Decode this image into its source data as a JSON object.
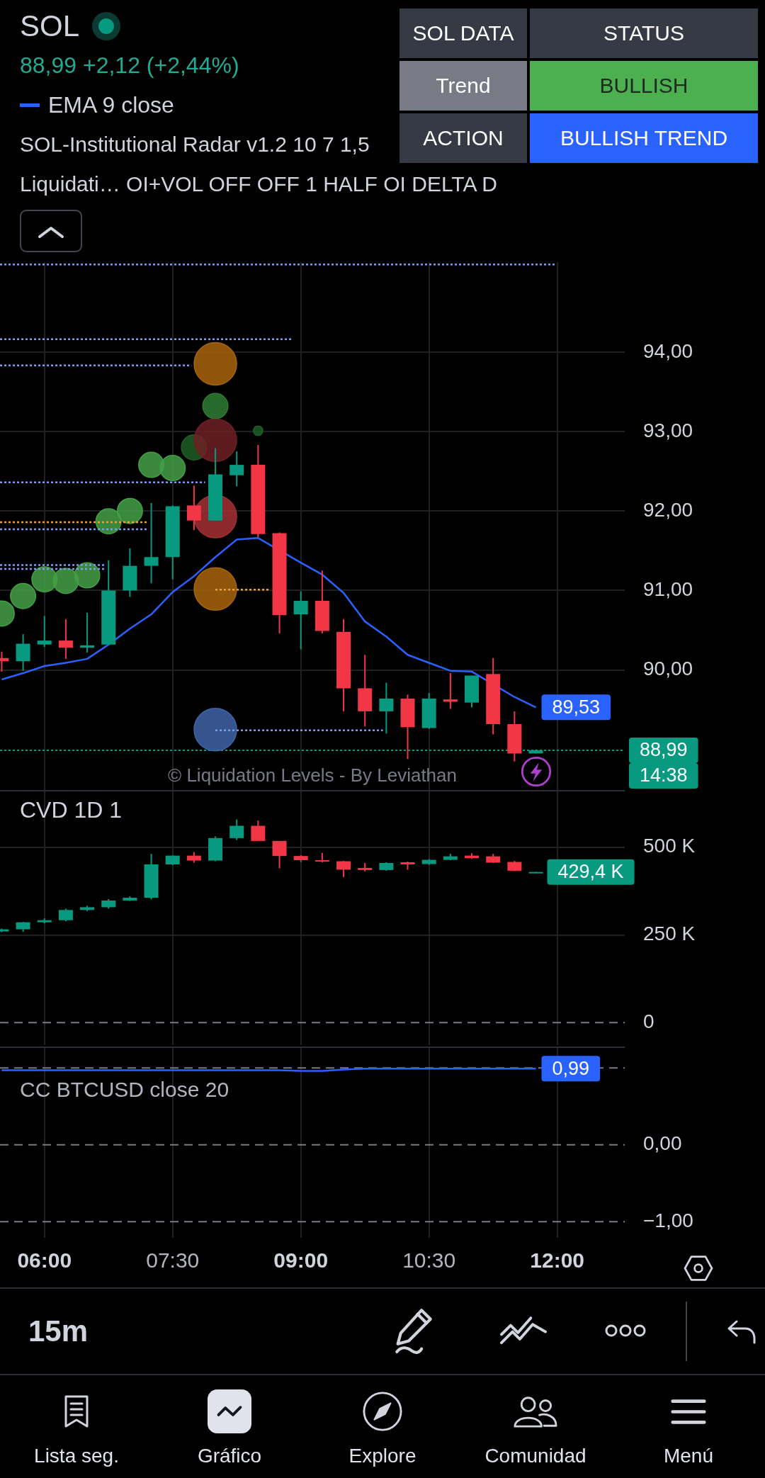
{
  "chart_data": [
    {
      "type": "candlestick",
      "title": "SOL",
      "subtitle": "88,99 +2,12 (+2,44%)",
      "x": [
        5.5,
        5.75,
        6,
        6.25,
        6.5,
        6.75,
        7,
        7.25,
        7.5,
        7.75,
        8,
        8.25,
        8.5,
        8.75,
        9,
        9.25,
        9.5,
        9.75,
        10,
        10.25,
        10.5,
        10.75,
        11,
        11.25,
        11.5,
        11.75
      ],
      "ohlc": [
        [
          90.15,
          90.23,
          89.98,
          90.11
        ],
        [
          90.11,
          90.45,
          89.99,
          90.33
        ],
        [
          90.32,
          90.68,
          90.29,
          90.37
        ],
        [
          90.37,
          90.64,
          90.14,
          90.28
        ],
        [
          90.28,
          90.72,
          90.22,
          90.31
        ],
        [
          90.32,
          91.38,
          90.31,
          91.0
        ],
        [
          91.0,
          91.53,
          90.92,
          91.31
        ],
        [
          91.31,
          92.1,
          91.09,
          91.42
        ],
        [
          91.42,
          92.07,
          91.14,
          92.06
        ],
        [
          92.07,
          92.32,
          91.76,
          91.88
        ],
        [
          91.88,
          92.79,
          91.88,
          92.46
        ],
        [
          92.45,
          92.75,
          92.31,
          92.58
        ],
        [
          92.58,
          92.83,
          91.67,
          91.71
        ],
        [
          91.72,
          91.73,
          90.46,
          90.69
        ],
        [
          90.7,
          90.99,
          90.26,
          90.87
        ],
        [
          90.87,
          91.25,
          90.46,
          90.49
        ],
        [
          90.48,
          90.64,
          89.48,
          89.77
        ],
        [
          89.77,
          90.19,
          89.29,
          89.48
        ],
        [
          89.48,
          89.84,
          89.2,
          89.64
        ],
        [
          89.64,
          89.69,
          88.88,
          89.28
        ],
        [
          89.27,
          89.71,
          89.26,
          89.64
        ],
        [
          89.63,
          89.96,
          89.51,
          89.6
        ],
        [
          89.59,
          89.93,
          89.53,
          89.93
        ],
        [
          89.95,
          90.15,
          89.19,
          89.32
        ],
        [
          89.32,
          89.48,
          88.85,
          88.95
        ],
        [
          88.95,
          89.0,
          88.95,
          88.99
        ]
      ],
      "colors": [
        "#f23645",
        "#089981",
        "#089981",
        "#f23645",
        "#089981",
        "#089981",
        "#089981",
        "#089981",
        "#089981",
        "#f23645",
        "#089981",
        "#089981",
        "#f23645",
        "#f23645",
        "#089981",
        "#f23645",
        "#f23645",
        "#f23645",
        "#089981",
        "#f23645",
        "#089981",
        "#f23645",
        "#089981",
        "#f23645",
        "#f23645",
        "#089981"
      ],
      "series": [
        {
          "type": "line",
          "name": "EMA 9 close",
          "color": "#2962ff",
          "values": [
            89.88,
            89.96,
            90.05,
            90.09,
            90.14,
            90.32,
            90.52,
            90.7,
            90.98,
            91.18,
            91.42,
            91.64,
            91.66,
            null,
            91.35,
            91.2,
            90.97,
            90.61,
            90.42,
            90.19,
            90.09,
            89.99,
            89.98,
            null,
            89.66,
            89.53
          ],
          "value_labels": [
            null,
            null,
            null,
            null,
            null,
            null,
            null,
            null,
            null,
            null,
            null,
            null,
            null,
            null,
            null,
            null,
            null,
            null,
            null,
            null,
            null,
            null,
            null,
            null,
            null,
            "89,53"
          ]
        },
        {
          "type": "bubble",
          "x": [
            5.5,
            5.75,
            6,
            6.25,
            6.5,
            6.75,
            7,
            7.25,
            7.5,
            7.75,
            8,
            8,
            8,
            8,
            8,
            8,
            8.5
          ],
          "values": [
            90.71,
            90.93,
            91.14,
            91.12,
            91.19,
            91.87,
            92.0,
            92.58,
            92.54,
            92.8,
            93.85,
            93.32,
            92.89,
            91.93,
            91.02,
            89.25,
            93.01
          ],
          "sizes": [
            0.35,
            0.35,
            0.35,
            0.35,
            0.35,
            0.35,
            0.35,
            0.35,
            0.35,
            0.35,
            1,
            0.35,
            1,
            1,
            1,
            1,
            0.05
          ],
          "colors": [
            "#43a047",
            "#43a047",
            "#43a047",
            "#43a047",
            "#43a047",
            "#43a047",
            "#43a047",
            "#43a047",
            "#43a047",
            "#1f5e24",
            "#a8640c",
            "#2e7d32",
            "#6e2024",
            "#a33034",
            "#a8640c",
            "#3f64a8",
            "#1f5e24"
          ]
        },
        {
          "type": "line",
          "color": "#7f9cf5",
          "line_style": "dotted",
          "x": [
            5.48,
            11.98
          ],
          "values": [
            95.1,
            95.1
          ]
        },
        {
          "type": "line",
          "color": "#7f9cf5",
          "line_style": "dotted",
          "x": [
            5.48,
            8.9
          ],
          "values": [
            94.16,
            94.16
          ]
        },
        {
          "type": "line",
          "color": "#7f9cf5",
          "line_style": "dotted",
          "x": [
            5.48,
            7.72
          ],
          "values": [
            93.83,
            93.83
          ]
        },
        {
          "type": "line",
          "color": "#7f9cf5",
          "line_style": "dotted",
          "x": [
            5.48,
            7.88
          ],
          "values": [
            92.36,
            92.36
          ]
        },
        {
          "type": "line",
          "color": "#f0a23a",
          "line_style": "dotted",
          "x": [
            5.48,
            7.22
          ],
          "values": [
            91.86,
            91.86
          ]
        },
        {
          "type": "line",
          "color": "#7f9cf5",
          "line_style": "dotted",
          "x": [
            5.48,
            7.22
          ],
          "values": [
            91.77,
            91.77
          ]
        },
        {
          "type": "line",
          "color": "#7f9cf5",
          "line_style": "dotted",
          "x": [
            5.48,
            6.72
          ],
          "values": [
            91.32,
            91.32
          ]
        },
        {
          "type": "line",
          "color": "#7f9cf5",
          "line_style": "dotted",
          "x": [
            5.48,
            6.72
          ],
          "values": [
            91.27,
            91.27
          ]
        },
        {
          "type": "line",
          "color": "#f0a23a",
          "line_style": "dotted",
          "x": [
            8,
            8.63
          ],
          "values": [
            91.01,
            91.01
          ]
        },
        {
          "type": "line",
          "color": "#7f9cf5",
          "line_style": "dotted",
          "x": [
            8,
            9.96
          ],
          "values": [
            89.24,
            89.24
          ]
        }
      ],
      "xlim": [
        5.48,
        12.79
      ],
      "ylim": [
        88.49,
        95.13
      ],
      "xticks": [
        6,
        7.5,
        9,
        10.5,
        12
      ],
      "yticks": [
        {
          "value": 90,
          "label": "90,00"
        },
        {
          "value": 91,
          "label": "91,00"
        },
        {
          "value": 92,
          "label": "92,00"
        },
        {
          "value": 93,
          "label": "93,00"
        },
        {
          "value": 94,
          "label": "94,00"
        }
      ],
      "ref_lines": [
        {
          "axis": "y",
          "value": 88.99,
          "label": "88,99",
          "color": "#089981",
          "line_style": "dotted"
        }
      ],
      "annotations": [
        "SOL-Institutional Radar v1.2 10 7 1,5",
        "Liquidati… OI+VOL OFF OFF 1 HALF OI DELTA D",
        "14:38",
        "© Liquidation Levels - By Leviathan"
      ],
      "grid": true,
      "legend": "top left",
      "tick_labels": "y"
    },
    {
      "type": "other",
      "annotations": [
        "SOL DATA",
        "STATUS",
        "Trend",
        "BULLISH",
        "ACTION",
        "BULLISH TREND"
      ],
      "colors": [
        "#363a45",
        "#363a45",
        "#787b86",
        "#4caf50",
        "#363a45",
        "#2962ff"
      ]
    },
    {
      "type": "candlestick",
      "title": "CVD 1D 1",
      "x": [
        5.5,
        5.75,
        6,
        6.25,
        6.5,
        6.75,
        7,
        7.25,
        7.5,
        7.75,
        8,
        8.25,
        8.5,
        8.75,
        9,
        9.25,
        9.5,
        9.75,
        10,
        10.25,
        10.5,
        10.75,
        11,
        11.25,
        11.5,
        11.75
      ],
      "ohlc": [
        [
          260,
          268,
          258,
          266
        ],
        [
          266,
          287,
          259,
          286
        ],
        [
          286,
          297,
          283,
          292
        ],
        [
          292,
          325,
          289,
          321
        ],
        [
          321,
          333,
          318,
          329
        ],
        [
          329,
          352,
          325,
          348
        ],
        [
          348,
          360,
          347,
          356
        ],
        [
          356,
          481,
          351,
          451
        ],
        [
          451,
          476,
          449,
          476
        ],
        [
          476,
          486,
          456,
          462
        ],
        [
          462,
          531,
          460,
          526
        ],
        [
          526,
          579,
          521,
          561
        ],
        [
          561,
          576,
          518,
          518
        ],
        [
          518,
          518,
          440,
          475
        ],
        [
          475,
          477,
          458,
          463
        ],
        [
          463,
          484,
          457,
          460
        ],
        [
          460,
          461,
          415,
          436
        ],
        [
          441,
          455,
          431,
          435
        ],
        [
          435,
          457,
          433,
          455
        ],
        [
          457,
          459,
          436,
          451
        ],
        [
          452,
          466,
          450,
          464
        ],
        [
          464,
          481,
          463,
          474
        ],
        [
          476,
          483,
          467,
          469
        ],
        [
          474,
          481,
          455,
          456
        ],
        [
          458,
          461,
          432,
          433
        ],
        [
          429,
          430,
          428,
          429.4
        ]
      ],
      "colors": [
        "#089981",
        "#089981",
        "#089981",
        "#089981",
        "#089981",
        "#089981",
        "#089981",
        "#089981",
        "#089981",
        "#f23645",
        "#089981",
        "#089981",
        "#f23645",
        "#f23645",
        "#f23645",
        "#f23645",
        "#f23645",
        "#f23645",
        "#089981",
        "#f23645",
        "#089981",
        "#089981",
        "#f23645",
        "#f23645",
        "#f23645",
        "#089981"
      ],
      "value_labels": [
        null,
        null,
        null,
        null,
        null,
        null,
        null,
        null,
        null,
        null,
        null,
        null,
        null,
        null,
        null,
        null,
        null,
        null,
        null,
        null,
        null,
        null,
        null,
        null,
        null,
        "429,4 K"
      ],
      "xlim": [
        5.48,
        12.79
      ],
      "ylim": [
        -64,
        659
      ],
      "xticks": [
        6,
        7.5,
        9,
        10.5,
        12
      ],
      "yticks": [
        0,
        {
          "value": 250,
          "label": "250 K"
        },
        {
          "value": 500,
          "label": "500 K"
        }
      ],
      "ref_lines": [
        {
          "axis": "y",
          "value": 0,
          "color": "#787b86",
          "line_style": "dashed"
        }
      ],
      "grid": true,
      "tick_labels": "y"
    },
    {
      "type": "line",
      "x": [
        5.5,
        5.75,
        6,
        6.25,
        6.5,
        6.75,
        7,
        7.25,
        7.5,
        7.75,
        8,
        8.25,
        8.5,
        8.75,
        9,
        9.25,
        9.5,
        9.75,
        10,
        10.25,
        10.5,
        10.75,
        11,
        11.25,
        11.5,
        11.75
      ],
      "series": [
        {
          "name": "CC BTCUSD close 20",
          "color": "#2962ff",
          "values": [
            0.97,
            0.97,
            0.97,
            0.97,
            0.97,
            0.97,
            0.97,
            0.97,
            0.97,
            0.97,
            0.97,
            0.97,
            0.97,
            0.97,
            0.96,
            0.96,
            0.98,
            0.99,
            0.99,
            0.99,
            0.99,
            0.99,
            0.99,
            0.99,
            0.99,
            0.99
          ],
          "value_labels": [
            null,
            null,
            null,
            null,
            null,
            null,
            null,
            null,
            null,
            null,
            null,
            null,
            null,
            null,
            null,
            null,
            null,
            null,
            null,
            null,
            null,
            null,
            null,
            null,
            null,
            "0,99"
          ]
        }
      ],
      "xlim": [
        5.48,
        12.79
      ],
      "ylim": [
        -1.21,
        1.26
      ],
      "xticks": [
        {
          "value": 6,
          "label": "06:00"
        },
        {
          "value": 7.5,
          "label": "07:30"
        },
        {
          "value": 9,
          "label": "09:00"
        },
        {
          "value": 10.5,
          "label": "10:30"
        },
        {
          "value": 12,
          "label": "12:00"
        }
      ],
      "yticks": [
        {
          "value": 0,
          "label": "0,00"
        },
        {
          "value": -1,
          "label": "−1,00"
        }
      ],
      "ref_lines": [
        {
          "axis": "y",
          "value": 1,
          "color": "#787b86",
          "line_style": "dashed"
        },
        {
          "axis": "y",
          "value": 0,
          "color": "#787b86",
          "line_style": "dashed"
        },
        {
          "axis": "y",
          "value": -1,
          "color": "#787b86",
          "line_style": "dashed"
        }
      ],
      "grid": true,
      "legend": "top left",
      "marker": "none"
    },
    {
      "type": "other",
      "annotations": [
        "15m",
        "Lista seg.",
        "Gráfico",
        "Explore",
        "Comunidad",
        "Menú"
      ]
    }
  ]
}
